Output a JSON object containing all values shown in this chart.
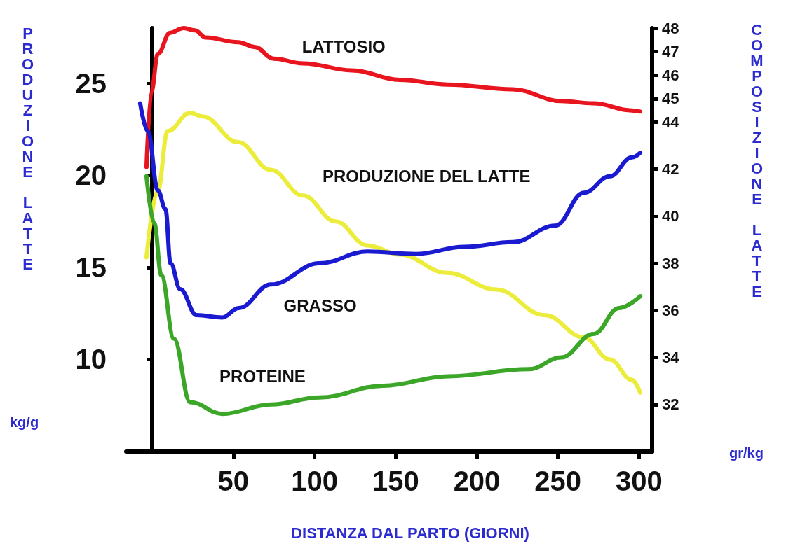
{
  "chart_data": {
    "type": "line",
    "xlabel": "DISTANZA DAL PARTO (GIORNI)",
    "ylabel": "PRODUZIONE LATTE",
    "y2label": "COMPOSIZIONE LATTE",
    "annotations": [
      "kg/g",
      "gr/kg"
    ],
    "xlim": [
      -16,
      308
    ],
    "xticks": [
      50,
      100,
      150,
      200,
      250,
      300
    ],
    "ylim": [
      5,
      28
    ],
    "yticks": [
      10,
      15,
      20,
      25
    ],
    "y2lim": [
      30,
      48
    ],
    "y2ticks": [
      32,
      34,
      36,
      38,
      40,
      42,
      44,
      45,
      46,
      47,
      48
    ],
    "grid": false,
    "legend": false,
    "marker": "none",
    "line_style": "solid",
    "series": [
      {
        "name": "LATTOSIO",
        "color": "#e8141e",
        "axis": "y2",
        "x": [
          -3.5,
          -0.5,
          3.5,
          11,
          19.5,
          26.4,
          33,
          53,
          63,
          75,
          93,
          123,
          152.5,
          182,
          222,
          252,
          272,
          295.5,
          300.7
        ],
        "values": [
          42.1,
          45.3,
          46.9,
          47.8,
          48.0,
          47.9,
          47.6,
          47.4,
          47.2,
          46.7,
          46.5,
          46.2,
          45.8,
          45.6,
          45.4,
          44.9,
          44.8,
          44.5,
          44.45
        ]
      },
      {
        "name": "PRODUZIONE DEL LATTE",
        "color": "#ecec3a",
        "x": [
          -3.5,
          3.5,
          9.5,
          23.4,
          31,
          53,
          73,
          93,
          113,
          132.5,
          152.5,
          182,
          212,
          242,
          266,
          282,
          295.5,
          300.7
        ],
        "values": [
          15.55,
          19.2,
          22.4,
          23.4,
          23.2,
          21.8,
          20.3,
          18.9,
          17.5,
          16.2,
          15.7,
          14.7,
          13.8,
          12.4,
          11.2,
          10.0,
          8.9,
          8.2
        ]
      },
      {
        "name": "GRASSO",
        "color": "#1a1ad0",
        "axis": "y2",
        "x": [
          -7.4,
          -2.6,
          3.5,
          8.2,
          11.3,
          17.3,
          27.3,
          43.3,
          53.3,
          73.2,
          103,
          132.6,
          162.5,
          192.4,
          222.3,
          248.3,
          266,
          282,
          295.5,
          300.7
        ],
        "values": [
          44.8,
          43.6,
          41.1,
          40.3,
          38.0,
          36.9,
          35.8,
          35.7,
          36.1,
          37.1,
          38.0,
          38.5,
          38.4,
          38.7,
          38.9,
          39.6,
          41.0,
          41.7,
          42.5,
          42.7
        ]
      },
      {
        "name": "PROTEINE",
        "color": "#3ca628",
        "axis": "y2",
        "x": [
          -3.5,
          1.3,
          5.6,
          13.4,
          23.4,
          43.3,
          73.2,
          103,
          142.5,
          182.4,
          232,
          252,
          272,
          287.7,
          300.7
        ],
        "values": [
          41.7,
          39.7,
          37.5,
          34.8,
          32.1,
          31.6,
          32.0,
          32.3,
          32.8,
          33.2,
          33.5,
          34.0,
          35.0,
          36.1,
          36.6
        ]
      }
    ]
  }
}
